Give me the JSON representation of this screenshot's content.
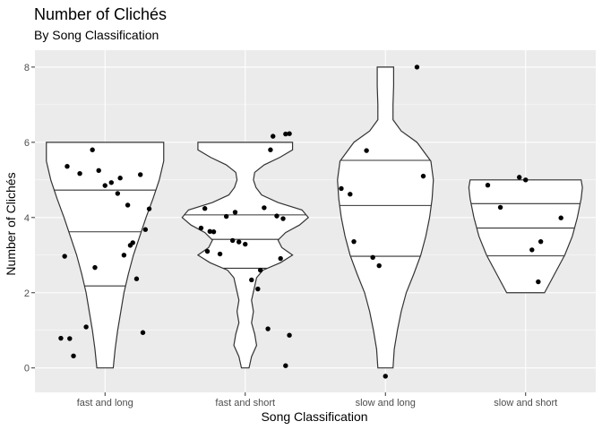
{
  "chart_data": {
    "type": "violin",
    "title": "Number of Clichés",
    "subtitle": "By Song Classification",
    "xlabel": "Song Classification",
    "ylabel": "Number of Clichés",
    "ylim": [
      -0.65,
      8.45
    ],
    "yticks": [
      0,
      2,
      4,
      6,
      8
    ],
    "grid": true,
    "colors": {
      "panel": "#ebebeb",
      "grid": "#ffffff",
      "violin_fill": "#ffffff",
      "violin_stroke": "#333333",
      "point": "#000000"
    },
    "categories": [
      "fast and long",
      "fast and short",
      "slow and long",
      "slow and short"
    ],
    "violins": [
      {
        "category": "fast and long",
        "quantiles": [
          2.18,
          3.62,
          4.73
        ],
        "profile": [
          [
            0.0,
            0.13
          ],
          [
            0.5,
            0.16
          ],
          [
            1.0,
            0.2
          ],
          [
            1.5,
            0.25
          ],
          [
            2.0,
            0.3
          ],
          [
            2.5,
            0.37
          ],
          [
            3.0,
            0.45
          ],
          [
            3.5,
            0.55
          ],
          [
            4.0,
            0.65
          ],
          [
            4.5,
            0.76
          ],
          [
            5.0,
            0.86
          ],
          [
            5.5,
            0.93
          ],
          [
            6.0,
            0.93
          ]
        ]
      },
      {
        "category": "fast and short",
        "quantiles": [
          2.65,
          3.42,
          4.07
        ],
        "profile": [
          [
            0.0,
            0.06
          ],
          [
            0.3,
            0.1
          ],
          [
            0.6,
            0.18
          ],
          [
            0.9,
            0.15
          ],
          [
            1.2,
            0.1
          ],
          [
            1.5,
            0.13
          ],
          [
            1.8,
            0.1
          ],
          [
            2.1,
            0.14
          ],
          [
            2.4,
            0.18
          ],
          [
            2.6,
            0.28
          ],
          [
            2.8,
            0.56
          ],
          [
            3.0,
            0.75
          ],
          [
            3.2,
            0.58
          ],
          [
            3.4,
            0.52
          ],
          [
            3.6,
            0.64
          ],
          [
            3.8,
            0.86
          ],
          [
            4.0,
            1.0
          ],
          [
            4.2,
            0.9
          ],
          [
            4.4,
            0.52
          ],
          [
            4.6,
            0.26
          ],
          [
            4.8,
            0.17
          ],
          [
            5.0,
            0.13
          ],
          [
            5.2,
            0.15
          ],
          [
            5.4,
            0.3
          ],
          [
            5.6,
            0.55
          ],
          [
            5.8,
            0.75
          ],
          [
            6.0,
            0.75
          ]
        ]
      },
      {
        "category": "slow and long",
        "quantiles": [
          2.97,
          4.32,
          5.52
        ],
        "profile": [
          [
            0.0,
            0.12
          ],
          [
            0.5,
            0.14
          ],
          [
            1.0,
            0.19
          ],
          [
            1.5,
            0.25
          ],
          [
            2.0,
            0.33
          ],
          [
            2.5,
            0.45
          ],
          [
            3.0,
            0.56
          ],
          [
            3.5,
            0.64
          ],
          [
            4.0,
            0.7
          ],
          [
            4.5,
            0.74
          ],
          [
            5.0,
            0.76
          ],
          [
            5.5,
            0.72
          ],
          [
            6.0,
            0.5
          ],
          [
            6.3,
            0.25
          ],
          [
            6.6,
            0.12
          ],
          [
            7.0,
            0.12
          ],
          [
            7.5,
            0.13
          ],
          [
            8.0,
            0.13
          ]
        ]
      },
      {
        "category": "slow and short",
        "quantiles": [
          2.98,
          3.72,
          4.37
        ],
        "profile": [
          [
            2.0,
            0.3
          ],
          [
            2.5,
            0.46
          ],
          [
            3.0,
            0.62
          ],
          [
            3.5,
            0.74
          ],
          [
            4.0,
            0.82
          ],
          [
            4.5,
            0.88
          ],
          [
            4.8,
            0.9
          ],
          [
            5.0,
            0.88
          ]
        ]
      }
    ],
    "points": [
      {
        "category": "fast and long",
        "x": 1.0,
        "y": 5.36
      },
      {
        "category": "fast and long",
        "x": 1.0,
        "y": 5.17
      },
      {
        "category": "fast and long",
        "x": 1.0,
        "y": 5.14
      },
      {
        "category": "fast and long",
        "x": 1.0,
        "y": 5.05
      },
      {
        "category": "fast and long",
        "x": 1.0,
        "y": 4.93
      },
      {
        "category": "fast and long",
        "x": 1.0,
        "y": 4.64
      },
      {
        "category": "fast and long",
        "x": 1.0,
        "y": 4.33
      },
      {
        "category": "fast and long",
        "x": 1.0,
        "y": 4.23
      },
      {
        "category": "fast and long",
        "x": 1.0,
        "y": 3.68
      },
      {
        "category": "fast and long",
        "x": 1.0,
        "y": 3.33
      },
      {
        "category": "fast and long",
        "x": 1.0,
        "y": 3.26
      },
      {
        "category": "fast and long",
        "x": 1.0,
        "y": 3.0
      },
      {
        "category": "fast and long",
        "x": 1.0,
        "y": 2.97
      },
      {
        "category": "fast and long",
        "x": 1.0,
        "y": 2.67
      },
      {
        "category": "fast and long",
        "x": 1.0,
        "y": 2.37
      },
      {
        "category": "fast and long",
        "x": 1.0,
        "y": 1.09
      },
      {
        "category": "fast and long",
        "x": 1.0,
        "y": 0.94
      },
      {
        "category": "fast and long",
        "x": 1.0,
        "y": 0.79
      },
      {
        "category": "fast and long",
        "x": 1.0,
        "y": 0.78
      },
      {
        "category": "fast and long",
        "x": 1.0,
        "y": 0.32
      },
      {
        "category": "fast and long",
        "x": 1.0,
        "y": 5.8
      },
      {
        "category": "fast and long",
        "x": 1.0,
        "y": 5.25
      },
      {
        "category": "fast and long",
        "x": 1.0,
        "y": 4.85
      },
      {
        "category": "fast and short",
        "x": 2.0,
        "y": 6.23
      },
      {
        "category": "fast and short",
        "x": 2.0,
        "y": 6.22
      },
      {
        "category": "fast and short",
        "x": 2.0,
        "y": 6.16
      },
      {
        "category": "fast and short",
        "x": 2.0,
        "y": 5.8
      },
      {
        "category": "fast and short",
        "x": 2.0,
        "y": 4.26
      },
      {
        "category": "fast and short",
        "x": 2.0,
        "y": 4.24
      },
      {
        "category": "fast and short",
        "x": 2.0,
        "y": 4.14
      },
      {
        "category": "fast and short",
        "x": 2.0,
        "y": 4.04
      },
      {
        "category": "fast and short",
        "x": 2.0,
        "y": 4.03
      },
      {
        "category": "fast and short",
        "x": 2.0,
        "y": 3.97
      },
      {
        "category": "fast and short",
        "x": 2.0,
        "y": 3.72
      },
      {
        "category": "fast and short",
        "x": 2.0,
        "y": 3.63
      },
      {
        "category": "fast and short",
        "x": 2.0,
        "y": 3.62
      },
      {
        "category": "fast and short",
        "x": 2.0,
        "y": 3.39
      },
      {
        "category": "fast and short",
        "x": 2.0,
        "y": 3.35
      },
      {
        "category": "fast and short",
        "x": 2.0,
        "y": 3.29
      },
      {
        "category": "fast and short",
        "x": 2.0,
        "y": 3.1
      },
      {
        "category": "fast and short",
        "x": 2.0,
        "y": 3.03
      },
      {
        "category": "fast and short",
        "x": 2.0,
        "y": 2.91
      },
      {
        "category": "fast and short",
        "x": 2.0,
        "y": 2.6
      },
      {
        "category": "fast and short",
        "x": 2.0,
        "y": 2.34
      },
      {
        "category": "fast and short",
        "x": 2.0,
        "y": 2.1
      },
      {
        "category": "fast and short",
        "x": 2.0,
        "y": 1.04
      },
      {
        "category": "fast and short",
        "x": 2.0,
        "y": 0.87
      },
      {
        "category": "fast and short",
        "x": 2.0,
        "y": 0.06
      },
      {
        "category": "slow and long",
        "x": 3.0,
        "y": 8.0
      },
      {
        "category": "slow and long",
        "x": 3.0,
        "y": 5.78
      },
      {
        "category": "slow and long",
        "x": 3.0,
        "y": 5.1
      },
      {
        "category": "slow and long",
        "x": 3.0,
        "y": 4.77
      },
      {
        "category": "slow and long",
        "x": 3.0,
        "y": 4.62
      },
      {
        "category": "slow and long",
        "x": 3.0,
        "y": 3.36
      },
      {
        "category": "slow and long",
        "x": 3.0,
        "y": 2.94
      },
      {
        "category": "slow and long",
        "x": 3.0,
        "y": 2.72
      },
      {
        "category": "slow and long",
        "x": 3.0,
        "y": -0.22
      },
      {
        "category": "slow and short",
        "x": 4.0,
        "y": 5.07
      },
      {
        "category": "slow and short",
        "x": 4.0,
        "y": 5.0
      },
      {
        "category": "slow and short",
        "x": 4.0,
        "y": 4.86
      },
      {
        "category": "slow and short",
        "x": 4.0,
        "y": 4.27
      },
      {
        "category": "slow and short",
        "x": 4.0,
        "y": 3.99
      },
      {
        "category": "slow and short",
        "x": 4.0,
        "y": 3.36
      },
      {
        "category": "slow and short",
        "x": 4.0,
        "y": 3.14
      },
      {
        "category": "slow and short",
        "x": 4.0,
        "y": 2.29
      }
    ]
  }
}
